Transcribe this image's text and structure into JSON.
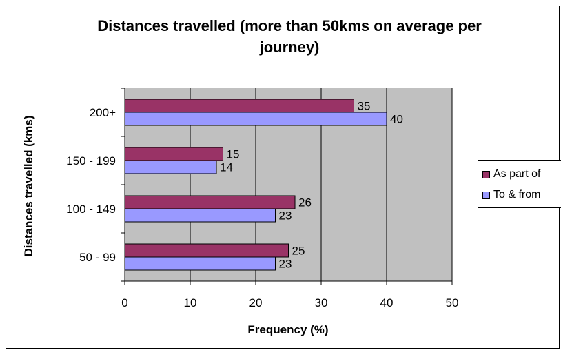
{
  "chart_data": {
    "type": "bar",
    "orientation": "horizontal",
    "title": "Distances travelled (more than 50kms on average per journey)",
    "xlabel": "Frequency (%)",
    "ylabel": "Distances travelled (kms)",
    "categories": [
      "200+",
      "150 - 199",
      "100 - 149",
      "50 - 99"
    ],
    "series": [
      {
        "name": "As part of",
        "values": [
          35,
          15,
          26,
          25
        ],
        "color": "#993366"
      },
      {
        "name": "To & from",
        "values": [
          40,
          14,
          23,
          23
        ],
        "color": "#9999ff"
      }
    ],
    "xlim": [
      0,
      50
    ],
    "xticks": [
      "0",
      "10",
      "20",
      "30",
      "40",
      "50"
    ],
    "grid": true,
    "plot_background": "#c0c0c0",
    "legend_position": "right"
  }
}
